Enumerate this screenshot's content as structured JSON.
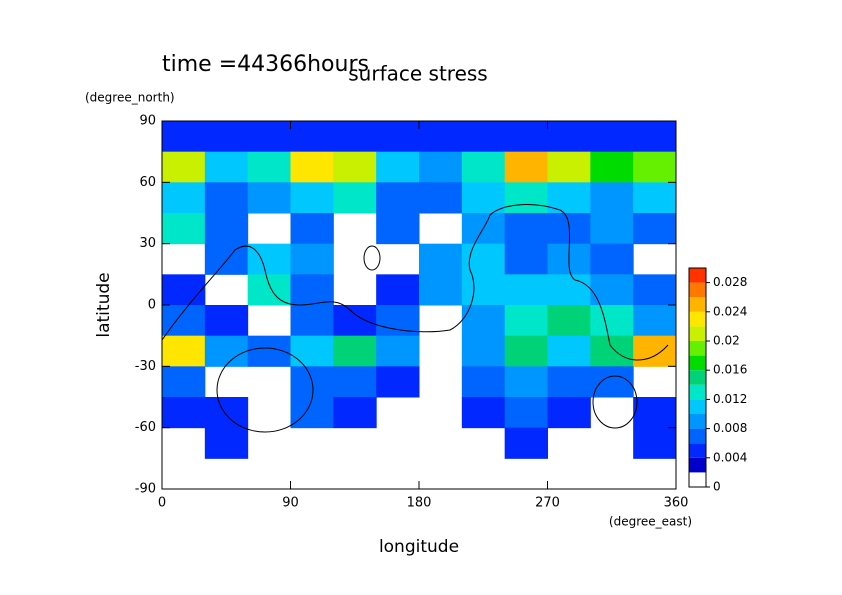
{
  "chart_data": {
    "type": "contour",
    "time_label": "time =44366hours",
    "title": "surface stress",
    "y_unit": "(degree_north)",
    "x_unit": "(degree_east)",
    "x_label": "longitude",
    "y_label": "latitude",
    "xlim": [
      0,
      360
    ],
    "xticks": [
      0,
      90,
      180,
      270,
      360
    ],
    "ylim": [
      -90,
      90
    ],
    "yticks": [
      -90,
      -60,
      -30,
      0,
      30,
      60,
      90
    ],
    "x": [
      15,
      45,
      75,
      105,
      135,
      165,
      195,
      225,
      255,
      285,
      315,
      345
    ],
    "y": [
      82.5,
      67.5,
      52.5,
      37.5,
      22.5,
      7.5,
      -7.5,
      -22.5,
      -37.5,
      -52.5,
      -67.5,
      -82.5
    ],
    "z": [
      [
        0.004,
        0.004,
        0.004,
        0.004,
        0.004,
        0.004,
        0.004,
        0.004,
        0.004,
        0.004,
        0.004,
        0.004
      ],
      [
        0.02,
        0.01,
        0.012,
        0.022,
        0.02,
        0.01,
        0.008,
        0.012,
        0.024,
        0.02,
        0.016,
        0.018
      ],
      [
        0.01,
        0.006,
        0.008,
        0.01,
        0.012,
        0.006,
        0.006,
        0.01,
        0.012,
        0.01,
        0.008,
        0.01
      ],
      [
        0.012,
        0.006,
        null,
        0.006,
        null,
        0.006,
        null,
        0.008,
        0.006,
        0.006,
        0.008,
        0.006
      ],
      [
        null,
        0.006,
        0.01,
        0.008,
        null,
        null,
        0.008,
        0.01,
        0.006,
        0.008,
        0.006,
        null
      ],
      [
        0.004,
        null,
        0.012,
        0.006,
        null,
        0.004,
        0.008,
        0.01,
        0.01,
        0.01,
        0.008,
        0.006
      ],
      [
        0.006,
        0.004,
        null,
        0.006,
        0.004,
        0.006,
        null,
        0.008,
        0.012,
        0.014,
        0.012,
        0.008
      ],
      [
        0.022,
        0.008,
        0.006,
        0.01,
        0.014,
        0.008,
        null,
        0.008,
        0.014,
        0.01,
        0.014,
        0.024
      ],
      [
        0.006,
        null,
        null,
        0.006,
        0.006,
        0.004,
        null,
        0.006,
        0.008,
        0.006,
        0.006,
        null
      ],
      [
        0.004,
        0.004,
        null,
        0.006,
        0.004,
        null,
        null,
        0.004,
        0.006,
        0.004,
        null,
        0.004
      ],
      [
        null,
        0.004,
        null,
        null,
        null,
        null,
        null,
        null,
        0.004,
        null,
        null,
        0.004
      ],
      [
        null,
        null,
        null,
        null,
        null,
        null,
        null,
        null,
        null,
        null,
        null,
        null
      ]
    ],
    "levels": [
      0,
      0.002,
      0.004,
      0.006,
      0.008,
      0.01,
      0.012,
      0.014,
      0.016,
      0.018,
      0.02,
      0.022,
      0.024,
      0.026,
      0.028,
      0.03
    ],
    "level_colors": [
      "#ffffff",
      "#0000c8",
      "#0028ff",
      "#0064ff",
      "#0096ff",
      "#00c8ff",
      "#00e6c8",
      "#00d278",
      "#00dc00",
      "#64f000",
      "#c8f000",
      "#ffe600",
      "#ffb400",
      "#ff7800",
      "#ff3200"
    ],
    "colorbar_ticks": [
      0,
      0.004,
      0.008,
      0.012,
      0.016,
      0.02,
      0.024,
      0.028
    ]
  }
}
